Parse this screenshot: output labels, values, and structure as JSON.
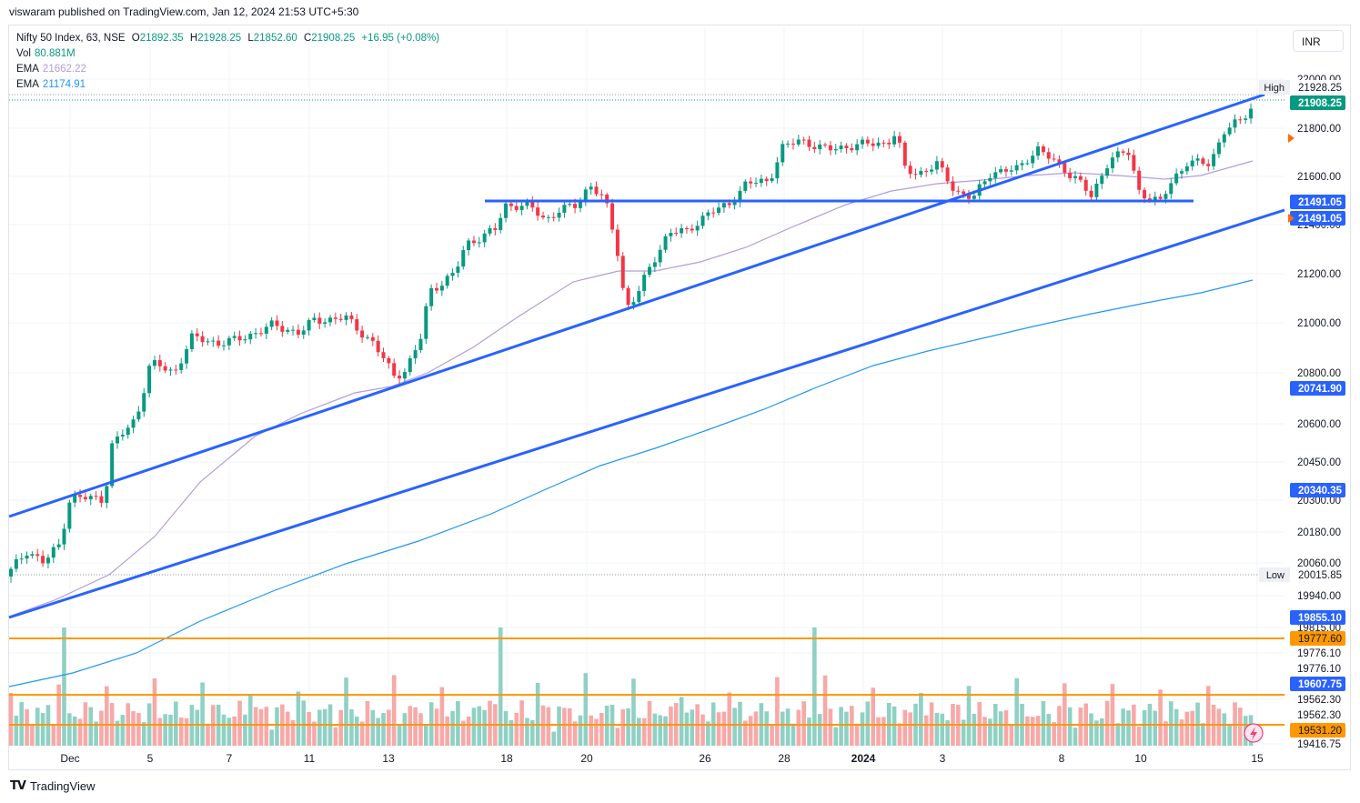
{
  "header": {
    "published_text": "viswaram published on TradingView.com, Jan 12, 2024 21:53 UTC+5:30"
  },
  "legend": {
    "symbol": "Nifty 50 Index, 63, NSE",
    "o_label": "O",
    "o": "21892.35",
    "h_label": "H",
    "h": "21928.25",
    "l_label": "L",
    "l": "21852.60",
    "c_label": "C",
    "c": "21908.25",
    "change": "+16.95 (+0.08%)",
    "vol_label": "Vol",
    "vol": "80.881M",
    "ema1_label": "EMA",
    "ema1": "21662.22",
    "ema2_label": "EMA",
    "ema2": "21174.91"
  },
  "currency_button": "INR",
  "footer": {
    "brand": "TradingView",
    "logo": "tv-logo-icon"
  },
  "colors": {
    "up": "#089981",
    "down": "#f23645",
    "vol_up": "#8fd1c4",
    "vol_down": "#f7a9a7",
    "ema_fast": "#b39ddb",
    "ema_slow": "#2196f3",
    "trendline": "#2962ff",
    "horizontal": "#ff9800"
  },
  "chart_data": {
    "type": "candlestick",
    "price_axis_ticks": [
      "22000.00",
      "21800.00",
      "21600.00",
      "21400.00",
      "21200.00",
      "21000.00",
      "20800.00",
      "20600.00",
      "20450.00",
      "20300.00",
      "20180.00",
      "20060.00",
      "19940.00",
      "19815.00",
      "19776.10",
      "19776.10",
      "19562.30",
      "19562.30",
      "19416.75"
    ],
    "time_axis_labels": [
      "Dec",
      "5",
      "7",
      "11",
      "13",
      "18",
      "20",
      "26",
      "28",
      "2024",
      "3",
      "8",
      "10",
      "15"
    ],
    "price_labels": [
      {
        "text": "21928.25",
        "kind": "high",
        "note": "High"
      },
      {
        "text": "21908.25",
        "kind": "last"
      },
      {
        "text": "21491.05",
        "kind": "line"
      },
      {
        "text": "21491.05",
        "kind": "line"
      },
      {
        "text": "20741.90",
        "kind": "line"
      },
      {
        "text": "20340.35",
        "kind": "line"
      },
      {
        "text": "20015.85",
        "kind": "low",
        "note": "Low"
      },
      {
        "text": "19855.10",
        "kind": "line"
      },
      {
        "text": "19777.60",
        "kind": "horizontal"
      },
      {
        "text": "19607.75",
        "kind": "line"
      },
      {
        "text": "19531.20",
        "kind": "horizontal"
      }
    ],
    "horizontal_levels": [
      19777.6,
      19562.3,
      19531.2
    ],
    "support_level": 21491.05,
    "last_close": 21908.25,
    "high": 21928.25,
    "low": 20015.85
  }
}
